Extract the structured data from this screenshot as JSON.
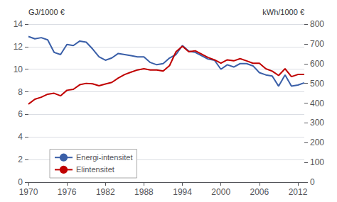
{
  "chart_data": {
    "type": "line",
    "x": [
      1970,
      1971,
      1972,
      1973,
      1974,
      1975,
      1976,
      1977,
      1978,
      1979,
      1980,
      1981,
      1982,
      1983,
      1984,
      1985,
      1986,
      1987,
      1988,
      1989,
      1990,
      1991,
      1992,
      1993,
      1994,
      1995,
      1996,
      1997,
      1998,
      1999,
      2000,
      2001,
      2002,
      2003,
      2004,
      2005,
      2006,
      2007,
      2008,
      2009,
      2010,
      2011,
      2012,
      2013
    ],
    "series": [
      {
        "name": "Energi-intensitet",
        "color": "#3A5FA8",
        "values": [
          12.9,
          12.7,
          12.8,
          12.6,
          11.5,
          11.3,
          12.2,
          12.1,
          12.5,
          12.4,
          11.8,
          11.1,
          10.8,
          11.0,
          11.4,
          11.3,
          11.2,
          11.1,
          11.1,
          10.6,
          10.4,
          10.5,
          11.0,
          11.3,
          12.1,
          11.6,
          11.5,
          11.2,
          10.9,
          10.8,
          10.0,
          10.4,
          10.2,
          10.5,
          10.5,
          10.3,
          9.7,
          9.5,
          9.4,
          8.5,
          9.5,
          8.5,
          8.6,
          8.8
        ]
      },
      {
        "name": "Elintensitet",
        "color": "#C00000",
        "axis": "y2",
        "values": [
          395,
          420,
          430,
          445,
          450,
          437,
          465,
          470,
          493,
          500,
          498,
          488,
          497,
          505,
          527,
          545,
          557,
          568,
          574,
          568,
          568,
          562,
          590,
          660,
          688,
          660,
          665,
          648,
          631,
          619,
          602,
          619,
          614,
          625,
          614,
          602,
          602,
          574,
          562,
          540,
          574,
          534,
          545,
          545
        ]
      }
    ],
    "ylabel": "GJ/1000 €",
    "y2label": "kWh/1000 €",
    "xlim": [
      1970,
      2013
    ],
    "xticks": [
      1970,
      1976,
      1982,
      1988,
      1994,
      2000,
      2006,
      2012
    ],
    "ylim": [
      0,
      14
    ],
    "yticks": [
      0,
      2,
      4,
      6,
      8,
      10,
      12,
      14
    ],
    "y2lim": [
      0,
      800
    ],
    "y2ticks": [
      0,
      100,
      200,
      300,
      400,
      500,
      600,
      700,
      800
    ],
    "grid": true,
    "legend": "lower left"
  }
}
